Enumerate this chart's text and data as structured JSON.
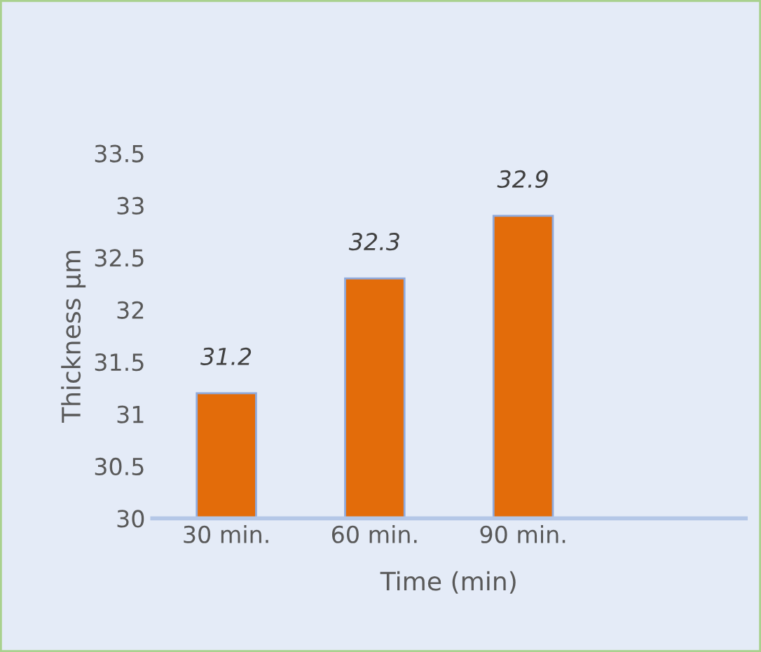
{
  "chart_data": {
    "type": "bar",
    "categories": [
      "30 min.",
      "60 min.",
      "90 min.",
      null
    ],
    "values": [
      31.2,
      32.3,
      32.9,
      null
    ],
    "color": "#e36c0a",
    "xlabel": "Time (min)",
    "ylabel": "Thickness μm",
    "ylim": [
      30,
      33.5
    ],
    "yticks": [
      30,
      30.5,
      31,
      31.5,
      32,
      32.5,
      33,
      33.5
    ],
    "data_labels": true,
    "grid": false,
    "legend": false
  }
}
